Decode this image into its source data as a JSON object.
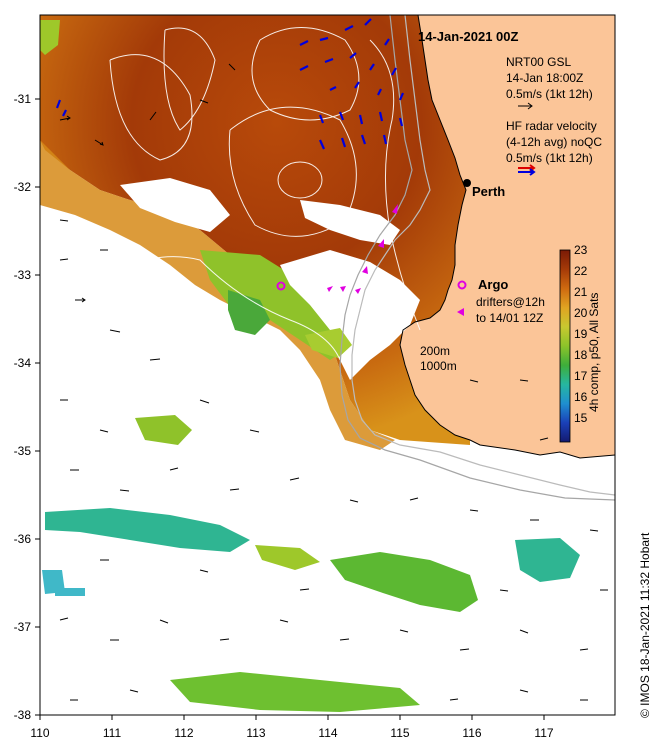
{
  "map": {
    "title": "14-Jan-2021 00Z",
    "city_label": "Perth",
    "legend": {
      "gsl_line1": "NRT00 GSL",
      "gsl_line2": "14-Jan 18:00Z",
      "gsl_line3": "0.5m/s (1kt 12h)",
      "hf_line1": "HF radar velocity",
      "hf_line2": "(4-12h avg) noQC",
      "hf_line3": "0.5m/s (1kt 12h)",
      "argo_label": "Argo",
      "drifters_line1": "drifters@12h",
      "drifters_line2": "to 14/01 12Z"
    },
    "depth_label_1": "200m",
    "depth_label_2": "1000m",
    "credit": "© IMOS 18-Jan-2021 11:32 Hobart",
    "colorbar": {
      "label": "4h comp, p50, All Sats",
      "ticks": [
        "23",
        "22",
        "21",
        "20",
        "19",
        "18",
        "17",
        "16",
        "15"
      ]
    },
    "x_ticks": [
      "110",
      "111",
      "112",
      "113",
      "114",
      "115",
      "116",
      "117"
    ],
    "y_ticks": [
      "-31",
      "-32",
      "-33",
      "-34",
      "-35",
      "-36",
      "-37",
      "-38"
    ],
    "colors": {
      "land": "#fbc598",
      "warm_water": "#a83c08",
      "mid_water": "#d27a12",
      "cool_water": "#7ab21f",
      "cold_water": "#2fb592",
      "hf_vectors": "#0000dd",
      "hf_legend_red": "#dd0000",
      "argo": "#e000e0",
      "coast": "#000000",
      "isobath": "#b9b9b9"
    }
  }
}
